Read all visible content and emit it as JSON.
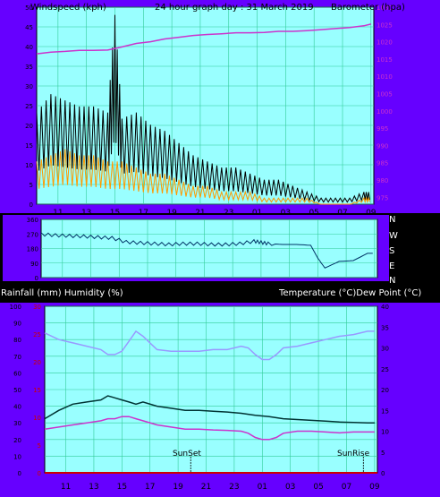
{
  "header": {
    "left": "Windspeed (kph)",
    "center": "24 hour graph day : 31 March 2019",
    "right": "Barometer (hpa)"
  },
  "dir_labels": [
    "N",
    "W",
    "S",
    "E",
    "N"
  ],
  "bottom_header": {
    "left": "Rainfall (mm)  Humidity (%)",
    "right": "Temperature (°C)Dew Point (°C)"
  },
  "markers": {
    "sunset": "SunSet",
    "sunrise": "SunRise"
  },
  "x_ticks": [
    "11",
    "13",
    "15",
    "17",
    "19",
    "21",
    "23",
    "01",
    "03",
    "05",
    "07",
    "09"
  ],
  "colors": {
    "plot_bg": "#99FFFF",
    "panel_bg": "#6600FF",
    "grid": "#33CC99",
    "wind_gust": "#000000",
    "wind_avg": "#FF9900",
    "barometer": "#CC33CC",
    "direction": "#003366",
    "humidity": "#9999FF",
    "temperature": "#003333",
    "dewpoint": "#CC33CC",
    "rain": "#CC0000"
  },
  "chart_data": [
    {
      "type": "line",
      "title": "24 hour graph day : 31 March 2019",
      "y_left_label": "Windspeed (kph)",
      "y_right_label": "Barometer (hpa)",
      "y_left_ticks": [
        0,
        5,
        10,
        15,
        20,
        25,
        30,
        35,
        40,
        45,
        50
      ],
      "y_left_range": [
        0,
        50
      ],
      "y_right_ticks": [
        975,
        980,
        985,
        990,
        995,
        1000,
        1005,
        1010,
        1015,
        1020,
        1025,
        1030
      ],
      "y_right_range": [
        973,
        1030
      ],
      "x_range_hours": [
        9.5,
        33.2
      ],
      "series": [
        {
          "name": "gust",
          "x": [
            9.5,
            10.5,
            11.5,
            12.5,
            13.5,
            14.5,
            15.0,
            15.5,
            16.5,
            17.5,
            18.5,
            19.5,
            20.5,
            21.5,
            22.5,
            23.5,
            24.5,
            25.5,
            26.5,
            27.5,
            28.5,
            29.5,
            30.5,
            31.5,
            32.5,
            33.0
          ],
          "y": [
            15,
            18,
            17,
            16,
            16,
            15,
            31,
            14,
            15,
            13,
            12,
            10,
            8,
            7,
            6,
            6,
            5,
            4,
            4,
            3,
            2,
            1,
            1,
            1,
            2,
            2
          ]
        },
        {
          "name": "average",
          "x": [
            9.5,
            10.5,
            11.5,
            12.5,
            13.5,
            14.5,
            15.5,
            16.5,
            17.5,
            18.5,
            19.5,
            20.5,
            21.5,
            22.5,
            23.5,
            24.5,
            25.5,
            26.5,
            27.5,
            28.5,
            29.5,
            30.5,
            31.5,
            32.5,
            33.0
          ],
          "y": [
            7,
            8,
            9,
            8,
            8,
            7,
            7,
            6,
            5,
            5,
            4,
            3,
            3,
            2,
            2,
            2,
            1,
            1,
            1,
            1,
            0,
            0,
            0,
            1,
            1
          ]
        },
        {
          "name": "barometer",
          "x": [
            9.5,
            10.5,
            11.5,
            12.5,
            13.5,
            14.5,
            15.5,
            16.5,
            17.5,
            18.5,
            19.5,
            20.5,
            21.5,
            22.5,
            23.5,
            24.5,
            25.5,
            26.5,
            27.5,
            28.5,
            29.5,
            30.5,
            31.5,
            32.5,
            33.0
          ],
          "y": [
            1016.5,
            1017.0,
            1017.2,
            1017.5,
            1017.5,
            1017.6,
            1018.5,
            1019.5,
            1020.0,
            1020.8,
            1021.3,
            1021.8,
            1022.1,
            1022.3,
            1022.6,
            1022.6,
            1022.7,
            1023.0,
            1023.0,
            1023.2,
            1023.5,
            1023.8,
            1024.1,
            1024.6,
            1025.1
          ]
        }
      ]
    },
    {
      "type": "line",
      "title": "",
      "y_left_ticks": [
        0,
        90,
        180,
        270,
        360
      ],
      "y_range": [
        0,
        360
      ],
      "x_range_hours": [
        9.5,
        33.2
      ],
      "series": [
        {
          "name": "direction",
          "x": [
            9.5,
            10.5,
            11.5,
            12.5,
            13.5,
            14.5,
            15.5,
            16.5,
            17.5,
            18.5,
            19.5,
            20.5,
            21.5,
            22.5,
            23.5,
            24.5,
            25.0,
            25.5,
            26.5,
            27.5,
            28.5,
            29.0,
            29.5,
            30.5,
            31.5,
            32.5,
            33.0
          ],
          "y": [
            268,
            262,
            258,
            255,
            250,
            245,
            220,
            215,
            210,
            205,
            210,
            210,
            205,
            205,
            210,
            225,
            218,
            210,
            205,
            205,
            200,
            120,
            60,
            100,
            105,
            150,
            150
          ]
        }
      ]
    },
    {
      "type": "line",
      "title": "",
      "y_left_label": "Rainfall (mm)  Humidity (%)",
      "y_right_label": "Temperature (°C)Dew Point (°C)",
      "humidity_ticks": [
        0,
        10,
        20,
        30,
        40,
        50,
        60,
        70,
        80,
        90,
        100
      ],
      "humidity_range": [
        0,
        100
      ],
      "rain_ticks": [
        0,
        5,
        10,
        15,
        20,
        25,
        30
      ],
      "rain_range": [
        0,
        30
      ],
      "temp_ticks": [
        0,
        5,
        10,
        15,
        20,
        25,
        30,
        35,
        40
      ],
      "temp_range": [
        0,
        40
      ],
      "x_range_hours": [
        9.5,
        33.2
      ],
      "series": [
        {
          "name": "humidity",
          "axis": "humidity",
          "x": [
            9.5,
            10.5,
            11.5,
            12.5,
            13.5,
            14.0,
            14.5,
            15.0,
            15.5,
            16.0,
            16.5,
            17.0,
            17.5,
            18.5,
            19.5,
            20.5,
            21.5,
            22.5,
            23.5,
            24.0,
            24.5,
            25.0,
            25.5,
            26.0,
            26.5,
            27.5,
            28.5,
            29.5,
            30.5,
            31.5,
            32.5,
            33.0
          ],
          "y": [
            84,
            80,
            78,
            76,
            74,
            71,
            71,
            73,
            79,
            85,
            82,
            78,
            74,
            73,
            73,
            73,
            74,
            74,
            76,
            75,
            71,
            68,
            68,
            71,
            75,
            76,
            78,
            80,
            82,
            83,
            85,
            85
          ]
        },
        {
          "name": "temperature",
          "axis": "temp",
          "x": [
            9.5,
            10.5,
            11.5,
            12.5,
            13.5,
            14.0,
            14.5,
            15.0,
            15.5,
            16.0,
            16.5,
            17.5,
            18.5,
            19.5,
            20.5,
            21.5,
            22.5,
            23.5,
            24.5,
            25.5,
            26.5,
            27.5,
            28.5,
            29.5,
            30.5,
            31.5,
            32.5,
            33.0
          ],
          "y": [
            13,
            15,
            16.5,
            17,
            17.5,
            18.5,
            18,
            17.5,
            17,
            16.5,
            17,
            16,
            15.5,
            15,
            15,
            14.8,
            14.6,
            14.3,
            13.8,
            13.5,
            13,
            12.8,
            12.6,
            12.4,
            12.2,
            12.1,
            12,
            12
          ]
        },
        {
          "name": "dewpoint",
          "axis": "temp",
          "x": [
            9.5,
            10.5,
            11.5,
            12.5,
            13.5,
            14.0,
            14.5,
            15.0,
            15.5,
            16.0,
            16.5,
            17.5,
            18.5,
            19.5,
            20.5,
            21.5,
            22.5,
            23.5,
            24.0,
            24.5,
            25.0,
            25.5,
            26.0,
            26.5,
            27.5,
            28.5,
            29.5,
            30.5,
            31.5,
            32.5,
            33.0
          ],
          "y": [
            10.5,
            11,
            11.5,
            12,
            12.5,
            13,
            13,
            13.5,
            13.5,
            13,
            12.5,
            11.5,
            11,
            10.5,
            10.5,
            10.3,
            10.2,
            10,
            9.5,
            8.5,
            8,
            8,
            8.5,
            9.5,
            10,
            10,
            9.8,
            9.6,
            9.8,
            9.8,
            9.8
          ]
        },
        {
          "name": "rainfall",
          "axis": "rain",
          "x": [
            9.5,
            33.2
          ],
          "y": [
            0,
            0
          ]
        }
      ]
    }
  ]
}
